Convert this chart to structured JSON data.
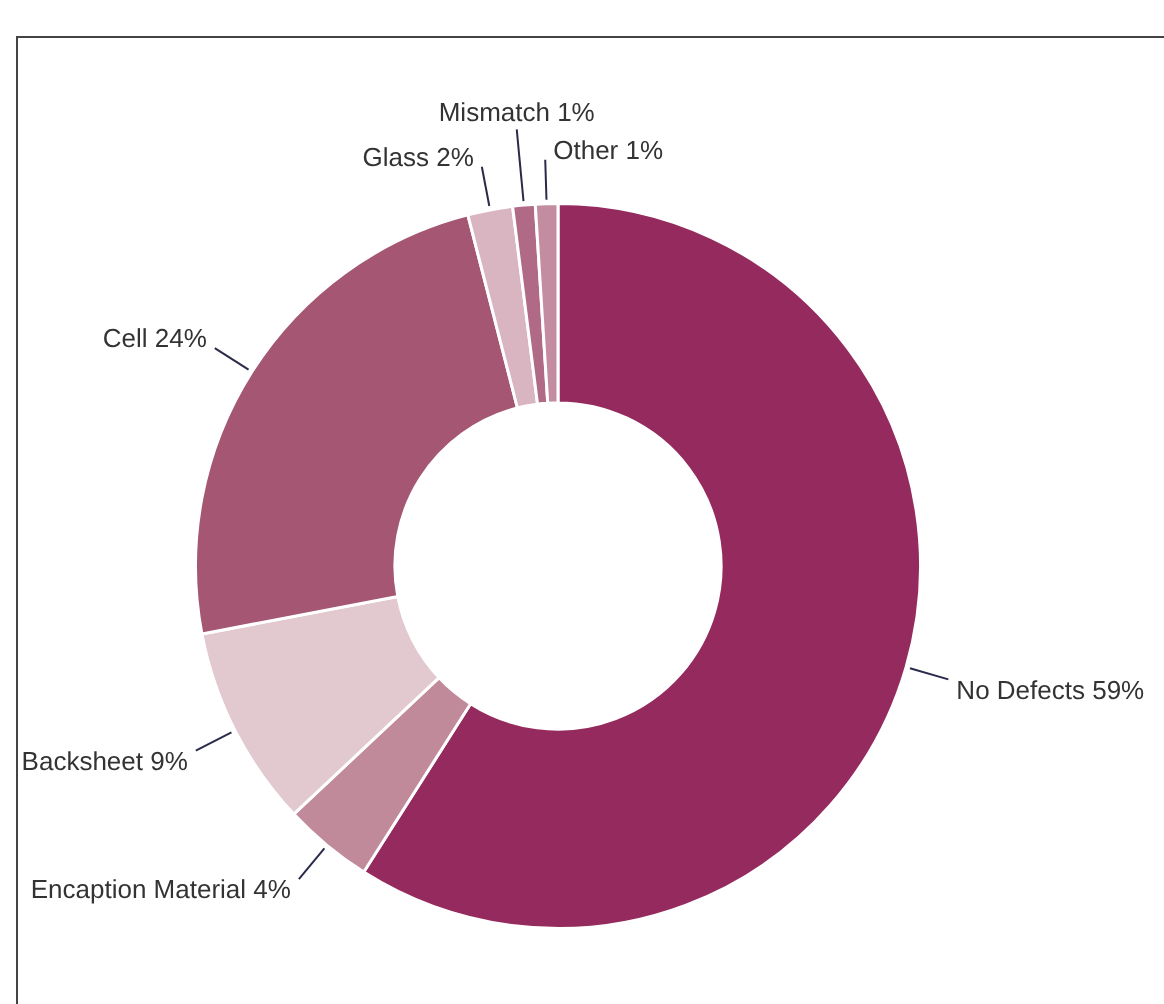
{
  "chart_data": {
    "type": "donut",
    "categories": [
      "No Defects",
      "Encaption Material",
      "Backsheet",
      "Cell",
      "Glass",
      "Mismatch",
      "Other"
    ],
    "values": [
      59,
      4,
      9,
      24,
      2,
      1,
      1
    ],
    "value_labels": [
      "59%",
      "4%",
      "9%",
      "24%",
      "2%",
      "1%",
      "1%"
    ],
    "colors": [
      "#942a5d",
      "#c08a9b",
      "#e2c9d0",
      "#a45673",
      "#d8b5c0",
      "#b06a86",
      "#c48ca0"
    ],
    "legend": false
  }
}
